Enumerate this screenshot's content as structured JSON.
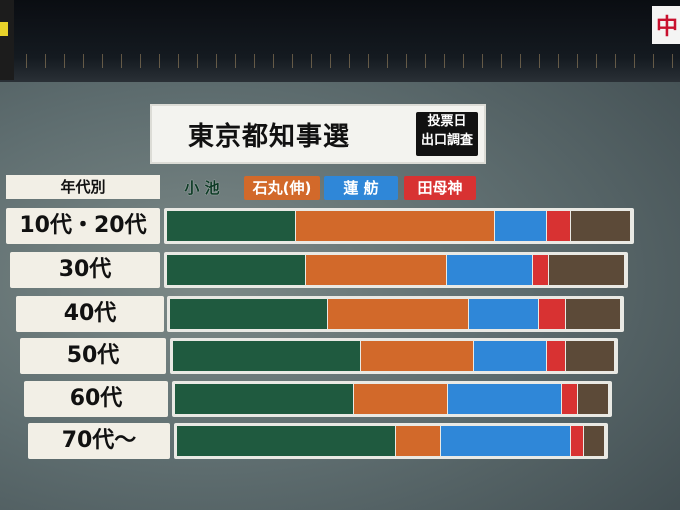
{
  "header": {
    "title": "東京都知事選",
    "badge_line1": "投票日",
    "badge_line2": "出口調査",
    "corner_text": "中"
  },
  "legend": {
    "label": "年代別",
    "items": [
      {
        "name": "小 池",
        "color": "#1f5a3f"
      },
      {
        "name": "石丸(伸)",
        "color": "#d2692a"
      },
      {
        "name": "蓮 舫",
        "color": "#2f87d8"
      },
      {
        "name": "田母神",
        "color": "#d83232"
      }
    ],
    "other_color": "#5c4a38"
  },
  "chart_data": {
    "type": "bar",
    "orientation": "horizontal-stacked-percent",
    "title": "東京都知事選",
    "categories": [
      "10代・20代",
      "30代",
      "40代",
      "50代",
      "60代",
      "70代〜"
    ],
    "series": [
      {
        "name": "小 池",
        "values": [
          27.7,
          30.4,
          35.0,
          42.6,
          41.2,
          51.1
        ]
      },
      {
        "name": "石丸(伸)",
        "values": [
          43.0,
          30.7,
          31.2,
          25.5,
          21.6,
          10.5
        ]
      },
      {
        "name": "蓮 舫",
        "values": [
          11.1,
          18.8,
          15.7,
          16.5,
          26.3,
          30.4
        ]
      },
      {
        "name": "田母神",
        "values": [
          5.3,
          3.6,
          5.8,
          4.3,
          3.7,
          3.0
        ]
      },
      {
        "values": [
          12.9,
          16.5,
          12.3,
          11.1,
          7.2,
          5.0
        ]
      }
    ],
    "xlim": [
      0,
      100
    ],
    "legend_position": "top"
  }
}
